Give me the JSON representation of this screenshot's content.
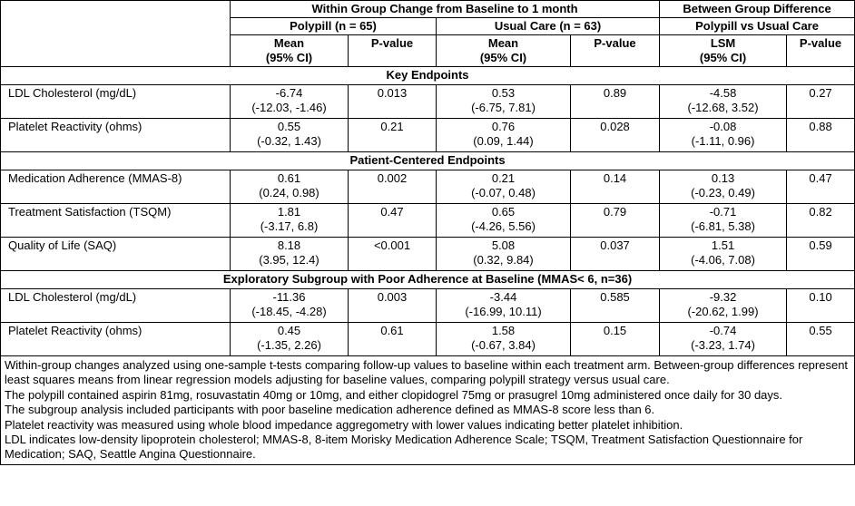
{
  "table": {
    "header": {
      "group_within": "Within Group Change from Baseline to 1 month",
      "group_between": "Between Group Difference",
      "arms": [
        "Polypill (n = 65)",
        "Usual Care (n = 63)",
        "Polypill vs Usual Care"
      ],
      "columns": [
        "Mean\n(95% CI)",
        "P-value",
        "Mean\n(95% CI)",
        "P-value",
        "LSM\n(95% CI)",
        "P-value"
      ]
    },
    "sections": [
      {
        "title": "Key Endpoints",
        "rows": [
          [
            "LDL Cholesterol (mg/dL)",
            "-6.74\n(-12.03, -1.46)",
            "0.013",
            "0.53\n(-6.75, 7.81)",
            "0.89",
            "-4.58\n(-12.68, 3.52)",
            "0.27"
          ],
          [
            "Platelet Reactivity (ohms)",
            "0.55\n(-0.32, 1.43)",
            "0.21",
            "0.76\n(0.09, 1.44)",
            "0.028",
            "-0.08\n(-1.11, 0.96)",
            "0.88"
          ]
        ]
      },
      {
        "title": "Patient-Centered Endpoints",
        "rows": [
          [
            "Medication Adherence (MMAS-8)",
            "0.61\n(0.24, 0.98)",
            "0.002",
            "0.21\n(-0.07, 0.48)",
            "0.14",
            "0.13\n(-0.23, 0.49)",
            "0.47"
          ],
          [
            "Treatment Satisfaction (TSQM)",
            "1.81\n(-3.17, 6.8)",
            "0.47",
            "0.65\n(-4.26, 5.56)",
            "0.79",
            "-0.71\n(-6.81, 5.38)",
            "0.82"
          ],
          [
            "Quality of Life (SAQ)",
            "8.18\n(3.95, 12.4)",
            "<0.001",
            "5.08\n(0.32, 9.84)",
            "0.037",
            "1.51\n(-4.06, 7.08)",
            "0.59"
          ]
        ]
      },
      {
        "title": "Exploratory Subgroup with Poor Adherence at Baseline (MMAS< 6, n=36)",
        "rows": [
          [
            "LDL Cholesterol (mg/dL)",
            "-11.36\n(-18.45, -4.28)",
            "0.003",
            "-3.44\n(-16.99, 10.11)",
            "0.585",
            "-9.32\n(-20.62, 1.99)",
            "0.10"
          ],
          [
            "Platelet Reactivity (ohms)",
            "0.45\n(-1.35, 2.26)",
            "0.61",
            "1.58\n(-0.67, 3.84)",
            "0.15",
            "-0.74\n(-3.23, 1.74)",
            "0.55"
          ]
        ]
      }
    ],
    "footnotes": [
      "Within-group changes analyzed using one-sample t-tests comparing follow-up values to baseline within each treatment arm. Between-group differences represent least squares means from linear regression models adjusting for baseline values, comparing polypill strategy versus usual care.",
      "The polypill contained aspirin 81mg, rosuvastatin 40mg or 10mg, and either clopidogrel 75mg or prasugrel 10mg administered once daily for 30 days.",
      "The subgroup analysis included participants with poor baseline medication adherence defined as MMAS-8 score less than 6.",
      "Platelet reactivity was measured using whole blood impedance aggregometry with lower values indicating better platelet inhibition.",
      "LDL indicates low-density lipoprotein cholesterol; MMAS-8, 8-item Morisky Medication Adherence Scale; TSQM, Treatment Satisfaction Questionnaire for Medication; SAQ, Seattle Angina Questionnaire."
    ]
  }
}
